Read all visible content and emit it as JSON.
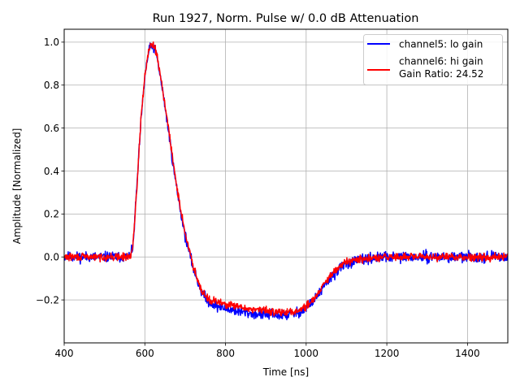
{
  "chart_data": {
    "type": "line",
    "title": "Run 1927, Norm. Pulse w/ 0.0 dB Attenuation",
    "xlabel": "Time [ns]",
    "ylabel": "Amplitude [Normalized]",
    "xlim": [
      400,
      1500
    ],
    "ylim": [
      -0.4,
      1.06
    ],
    "xticks": [
      400,
      600,
      800,
      1000,
      1200,
      1400
    ],
    "xtick_labels": [
      "400",
      "600",
      "800",
      "1000",
      "1200",
      "1400"
    ],
    "yticks": [
      -0.2,
      0.0,
      0.2,
      0.4,
      0.6,
      0.8,
      1.0
    ],
    "ytick_labels": [
      "−0.2",
      "0.0",
      "0.2",
      "0.4",
      "0.6",
      "0.8",
      "1.0"
    ],
    "grid": true,
    "legend_position": "top-right",
    "series": [
      {
        "name": "channel5: lo gain",
        "legend_lines": [
          "channel5: lo gain"
        ],
        "color": "#0000ff",
        "noise": 0.015,
        "seed": 11,
        "x": [
          400,
          560,
          570,
          580,
          590,
          600,
          610,
          620,
          630,
          640,
          650,
          660,
          670,
          680,
          690,
          700,
          710,
          720,
          730,
          740,
          750,
          760,
          780,
          800,
          850,
          900,
          950,
          980,
          1000,
          1020,
          1040,
          1060,
          1080,
          1100,
          1150,
          1200,
          1300,
          1400,
          1500
        ],
        "y": [
          0.0,
          0.0,
          0.03,
          0.32,
          0.62,
          0.84,
          0.96,
          0.99,
          0.93,
          0.82,
          0.7,
          0.57,
          0.43,
          0.31,
          0.2,
          0.1,
          0.02,
          -0.05,
          -0.11,
          -0.16,
          -0.19,
          -0.21,
          -0.23,
          -0.24,
          -0.26,
          -0.27,
          -0.27,
          -0.26,
          -0.24,
          -0.2,
          -0.15,
          -0.1,
          -0.06,
          -0.03,
          -0.01,
          0.0,
          0.0,
          0.0,
          0.0
        ]
      },
      {
        "name": "channel6: hi gain",
        "legend_lines": [
          "channel6: hi gain",
          "Gain Ratio: 24.52"
        ],
        "gain_ratio": 24.52,
        "color": "#ff0000",
        "noise": 0.011,
        "seed": 29,
        "x": [
          400,
          560,
          570,
          580,
          590,
          600,
          610,
          620,
          630,
          640,
          650,
          660,
          670,
          680,
          690,
          700,
          710,
          720,
          730,
          740,
          750,
          760,
          780,
          800,
          850,
          900,
          950,
          980,
          1000,
          1020,
          1040,
          1060,
          1080,
          1100,
          1150,
          1200,
          1300,
          1400,
          1500
        ],
        "y": [
          0.0,
          0.0,
          0.03,
          0.32,
          0.63,
          0.85,
          0.97,
          1.0,
          0.94,
          0.83,
          0.71,
          0.58,
          0.44,
          0.32,
          0.21,
          0.11,
          0.03,
          -0.04,
          -0.1,
          -0.15,
          -0.18,
          -0.2,
          -0.21,
          -0.22,
          -0.24,
          -0.25,
          -0.26,
          -0.25,
          -0.23,
          -0.19,
          -0.14,
          -0.09,
          -0.05,
          -0.02,
          -0.01,
          0.0,
          0.0,
          0.0,
          0.0
        ]
      }
    ]
  }
}
